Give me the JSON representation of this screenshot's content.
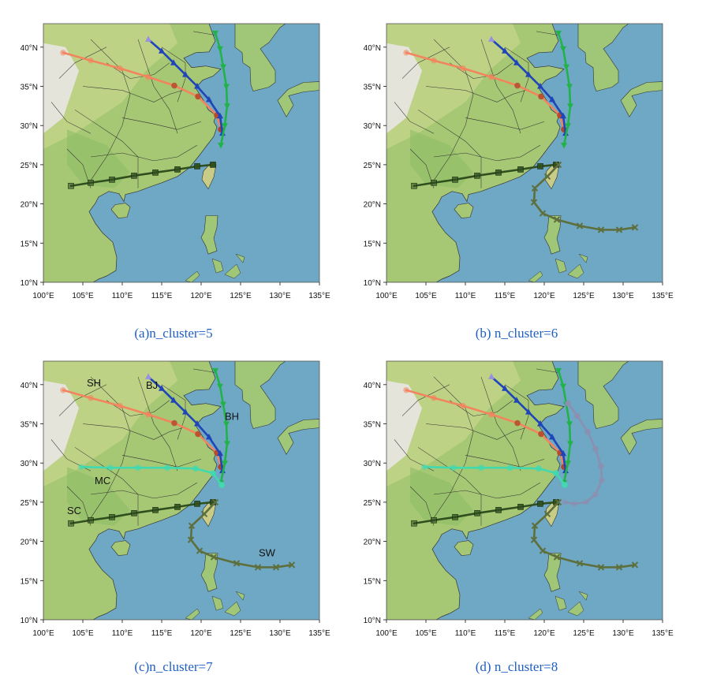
{
  "axes": {
    "x_ticks": [
      "100°E",
      "105°E",
      "110°E",
      "115°E",
      "120°E",
      "125°E",
      "130°E",
      "135°E"
    ],
    "y_ticks": [
      "10°N",
      "15°N",
      "20°N",
      "25°N",
      "30°N",
      "35°N",
      "40°N"
    ]
  },
  "colors": {
    "ocean": "#6fa8c4",
    "SH": "#f2845e",
    "BJ_start": "#9a8fe0",
    "BJ": "#1f45b8",
    "BH": "#22b24a",
    "MC": "#40d9b0",
    "SC": "#2f4f1f",
    "SW": "#5e6f3e",
    "ex": "#8b8fb0"
  },
  "panels": [
    {
      "caption": "(a)n_cluster=5",
      "routes": [
        "SH",
        "BJ",
        "BH",
        "SC"
      ],
      "labels": []
    },
    {
      "caption": "(b) n_cluster=6",
      "routes": [
        "SH",
        "BJ",
        "BH",
        "SC",
        "SW"
      ],
      "labels": []
    },
    {
      "caption": "(c)n_cluster=7",
      "routes": [
        "SH",
        "BJ",
        "BH",
        "MC",
        "SC",
        "SW"
      ],
      "labels": [
        "SH",
        "BJ",
        "BH",
        "MC",
        "SC",
        "SW"
      ]
    },
    {
      "caption": "(d) n_cluster=8",
      "routes": [
        "SH",
        "BJ",
        "BH",
        "MC",
        "SC",
        "SW",
        "EX"
      ],
      "labels": []
    }
  ],
  "routes": {
    "SH": {
      "name": "SH",
      "lon": [
        102.5,
        106,
        109.7,
        113.3,
        116.6,
        119.6,
        122,
        122.5
      ],
      "lat": [
        39.3,
        38.3,
        37.3,
        36.2,
        35.1,
        33.7,
        31.3,
        29.5
      ]
    },
    "BJ": {
      "name": "BJ",
      "lon": [
        113.3,
        115,
        116.5,
        118,
        119.5,
        121,
        122.4,
        122.7
      ],
      "lat": [
        41,
        39.5,
        38,
        36.5,
        35,
        33.3,
        31.2,
        29
      ]
    },
    "BH": {
      "name": "BH",
      "lon": [
        121.8,
        122.4,
        122.8,
        123.2,
        123.3,
        123,
        122.5
      ],
      "lat": [
        41.8,
        39.8,
        37.5,
        35,
        32.5,
        30,
        27.5
      ]
    },
    "MC": {
      "name": "MC",
      "lon": [
        104.8,
        108.5,
        112,
        115.7,
        119.3,
        121.5,
        122.6
      ],
      "lat": [
        29.5,
        29.4,
        29.4,
        29.4,
        29.3,
        28.7,
        27.2
      ]
    },
    "SC": {
      "name": "SC",
      "lon": [
        103.5,
        106,
        108.7,
        111.5,
        114.2,
        117,
        119.5,
        121.5
      ],
      "lat": [
        22.3,
        22.7,
        23.1,
        23.6,
        24,
        24.4,
        24.8,
        25
      ]
    },
    "SW": {
      "name": "SW",
      "lon": [
        121.8,
        120.4,
        118.8,
        118.7,
        119.8,
        121.6,
        124.5,
        127.2,
        129.5,
        131.5
      ],
      "lat": [
        25,
        23.5,
        22,
        20.2,
        18.8,
        18,
        17.2,
        16.7,
        16.7,
        17
      ]
    },
    "EX": {
      "name": "",
      "lon": [
        122.6,
        123.8,
        125.3,
        126.5,
        127.3,
        127.2,
        126.5,
        125.5,
        124.2,
        123
      ],
      "lat": [
        25,
        24.8,
        25,
        26,
        27.8,
        29.6,
        31.8,
        34,
        36,
        37.6
      ]
    }
  }
}
